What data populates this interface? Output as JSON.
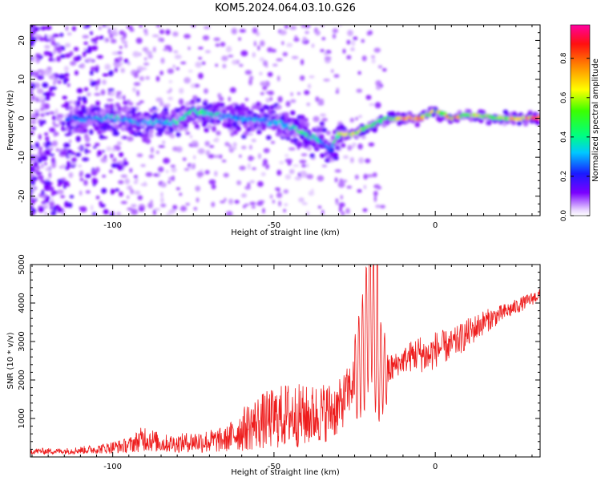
{
  "title": "KOM5.2024.064.03.10.G26",
  "colors": {
    "snr_line": "#ee1c1c",
    "axis": "#000000"
  },
  "chart_data": [
    {
      "type": "heatmap",
      "xlabel": "Height of straight line (km)",
      "ylabel": "Frequency (Hz)",
      "xlim": [
        -125.5,
        32.5
      ],
      "ylim": [
        -25,
        24
      ],
      "xticks": [
        -100,
        -50,
        0
      ],
      "yticks": [
        -20,
        -10,
        0,
        10,
        20
      ],
      "colorbar": {
        "label": "Normalized spectral amplitude",
        "range": [
          0.0,
          0.97
        ],
        "ticks": [
          "0.0",
          "0.2",
          "0.4",
          "0.6",
          "0.8"
        ],
        "colormap": "purple-blue-cyan-green-yellow-orange-red-magenta"
      },
      "ridge": {
        "description_points_x": [
          -112,
          -100,
          -90,
          -80,
          -75,
          -70,
          -60,
          -50,
          -45,
          -40,
          -35,
          -32,
          -30,
          -25,
          -20,
          -15,
          -10,
          -5,
          -2,
          0,
          5,
          10,
          20,
          32
        ],
        "frequency_y": [
          0,
          0,
          -1,
          -1,
          2,
          1,
          0,
          -1,
          -2,
          -4,
          -6,
          -8,
          -4,
          -4,
          -2,
          0,
          0,
          0,
          1,
          2,
          0,
          1,
          0,
          0
        ],
        "amplitude": [
          0.3,
          0.4,
          0.35,
          0.4,
          0.5,
          0.45,
          0.35,
          0.35,
          0.4,
          0.5,
          0.35,
          0.3,
          0.6,
          0.75,
          0.6,
          0.5,
          0.9,
          0.85,
          0.7,
          0.65,
          0.8,
          0.65,
          0.6,
          0.95
        ]
      }
    },
    {
      "type": "line",
      "xlabel": "Height of straight line (km)",
      "ylabel": "SNR (10 * v/v)",
      "xlim": [
        -125.5,
        32.5
      ],
      "ylim": [
        0,
        5000
      ],
      "xticks": [
        -100,
        -50,
        0
      ],
      "yticks": [
        1000,
        2000,
        3000,
        4000,
        5000
      ],
      "series": [
        {
          "x": [
            -125,
            -115,
            -105,
            -95,
            -90,
            -85,
            -80,
            -75,
            -70,
            -65,
            -60,
            -55,
            -50,
            -45,
            -40,
            -35,
            -30,
            -25,
            -22,
            -20,
            -18,
            -15,
            -12,
            -10,
            -8,
            -5,
            -2,
            0,
            5,
            10,
            15,
            20,
            25,
            32
          ],
          "y": [
            150,
            150,
            200,
            300,
            500,
            350,
            350,
            400,
            400,
            450,
            700,
            900,
            1000,
            1100,
            1050,
            1150,
            1250,
            2000,
            2800,
            4200,
            2300,
            2200,
            2400,
            2500,
            2600,
            2700,
            2600,
            2800,
            2900,
            3200,
            3500,
            3700,
            3900,
            4200
          ],
          "amplitude": [
            100,
            100,
            150,
            250,
            450,
            300,
            300,
            350,
            400,
            400,
            700,
            900,
            1000,
            1100,
            1000,
            1000,
            900,
            800,
            1200,
            1500,
            1100,
            600,
            400,
            400,
            500,
            600,
            600,
            600,
            500,
            500,
            400,
            300,
            250,
            200
          ]
        }
      ]
    }
  ]
}
